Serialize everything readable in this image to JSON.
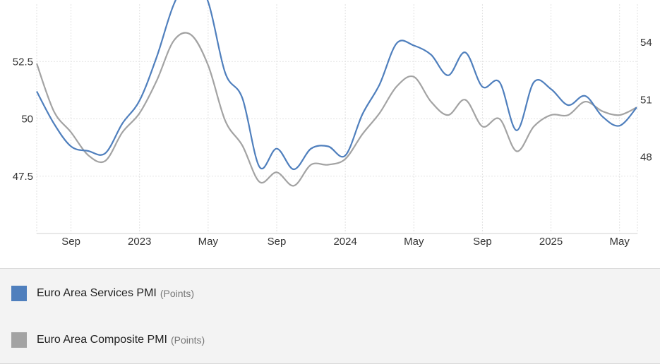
{
  "chart_data": {
    "type": "line",
    "x_tick_labels": [
      "Sep",
      "2023",
      "May",
      "Sep",
      "2024",
      "May",
      "Sep",
      "2025",
      "May"
    ],
    "y_left": {
      "ticks": [
        47.5,
        50,
        52.5
      ],
      "tick_labels": [
        "47.5",
        "50",
        "52.5"
      ],
      "range": [
        45,
        55
      ]
    },
    "y_right": {
      "ticks": [
        48,
        51,
        54
      ],
      "tick_labels": [
        "48",
        "51",
        "54"
      ],
      "range": [
        44,
        56
      ]
    },
    "grid": "dotted",
    "legend_position": "bottom",
    "x": [
      "2022-07",
      "2022-08",
      "2022-09",
      "2022-10",
      "2022-11",
      "2022-12",
      "2023-01",
      "2023-02",
      "2023-03",
      "2023-04",
      "2023-05",
      "2023-06",
      "2023-07",
      "2023-08",
      "2023-09",
      "2023-10",
      "2023-11",
      "2023-12",
      "2024-01",
      "2024-02",
      "2024-03",
      "2024-04",
      "2024-05",
      "2024-06",
      "2024-07",
      "2024-08",
      "2024-09",
      "2024-10",
      "2024-11",
      "2024-12",
      "2025-01",
      "2025-02",
      "2025-03",
      "2025-04",
      "2025-05",
      "2025-06"
    ],
    "series": [
      {
        "name": "Euro Area Services PMI",
        "unit": "(Points)",
        "axis": "left",
        "color": "#4f7fbd",
        "values": [
          51.2,
          49.8,
          48.8,
          48.6,
          48.5,
          49.8,
          50.8,
          52.7,
          55.0,
          56.2,
          55.1,
          52.0,
          50.9,
          47.9,
          48.7,
          47.8,
          48.7,
          48.8,
          48.4,
          50.2,
          51.5,
          53.3,
          53.2,
          52.8,
          51.9,
          52.9,
          51.4,
          51.6,
          49.5,
          51.6,
          51.3,
          50.6,
          51.0,
          50.1,
          49.7,
          50.5
        ]
      },
      {
        "name": "Euro Area Composite PMI",
        "unit": "(Points)",
        "axis": "right",
        "color": "#a3a3a3",
        "values": [
          52.9,
          50.4,
          49.3,
          48.1,
          47.8,
          49.3,
          50.3,
          52.0,
          54.1,
          54.4,
          52.8,
          49.9,
          48.6,
          46.7,
          47.2,
          46.5,
          47.6,
          47.6,
          47.9,
          49.2,
          50.3,
          51.7,
          52.2,
          50.9,
          50.2,
          51.0,
          49.6,
          50.0,
          48.3,
          49.6,
          50.2,
          50.2,
          50.9,
          50.4,
          50.2,
          50.6
        ]
      }
    ]
  },
  "legend": {
    "items": [
      {
        "name": "Euro Area Services PMI",
        "unit": "(Points)",
        "color": "#4f7fbd"
      },
      {
        "name": "Euro Area Composite PMI",
        "unit": "(Points)",
        "color": "#a3a3a3"
      }
    ]
  }
}
